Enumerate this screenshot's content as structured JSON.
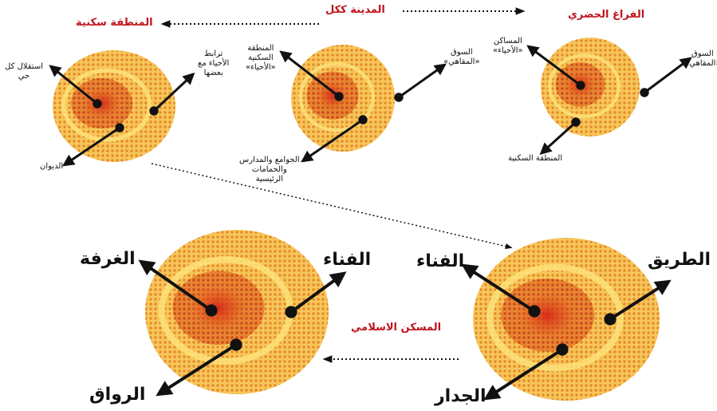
{
  "top": {
    "left_title": "المنطقة سكنية",
    "center_title": "المدينة ككل",
    "right_title": "الفراغ الحضري"
  },
  "left_circle": {
    "label_top_left": "استقلال كل\nحي",
    "label_top_right": "ترابط\nالأحياء مع\nبعضها",
    "label_bottom": "الديوان"
  },
  "mid_circle": {
    "label_top_left": "المنطقة\nالسكنية\n«الأحياء»",
    "label_top_right": "السوق\n«المقاهي»",
    "label_bottom": "الجوامع والمدارس\nوالحمامات\nالرئيسية"
  },
  "right_circle": {
    "label_top_left": "المساكن\n«الأحياء»",
    "label_top_right": "السوق\n«المقاهي»",
    "label_bottom": "المنطقة السكنية"
  },
  "bottom": {
    "center_title": "المسكن الاسلامي",
    "left_label_top_left": "الغرفة",
    "left_label_top_right": "الفناء",
    "left_label_bottom": "الرواق",
    "right_label_top_left": "الفناء",
    "right_label_top_right": "الطريق",
    "right_label_bottom": "الجدار"
  },
  "colors": {
    "outer": "#f5b73a",
    "inner": "#e8862b",
    "core": "#d9401f",
    "accent_red": "#c0141e"
  }
}
